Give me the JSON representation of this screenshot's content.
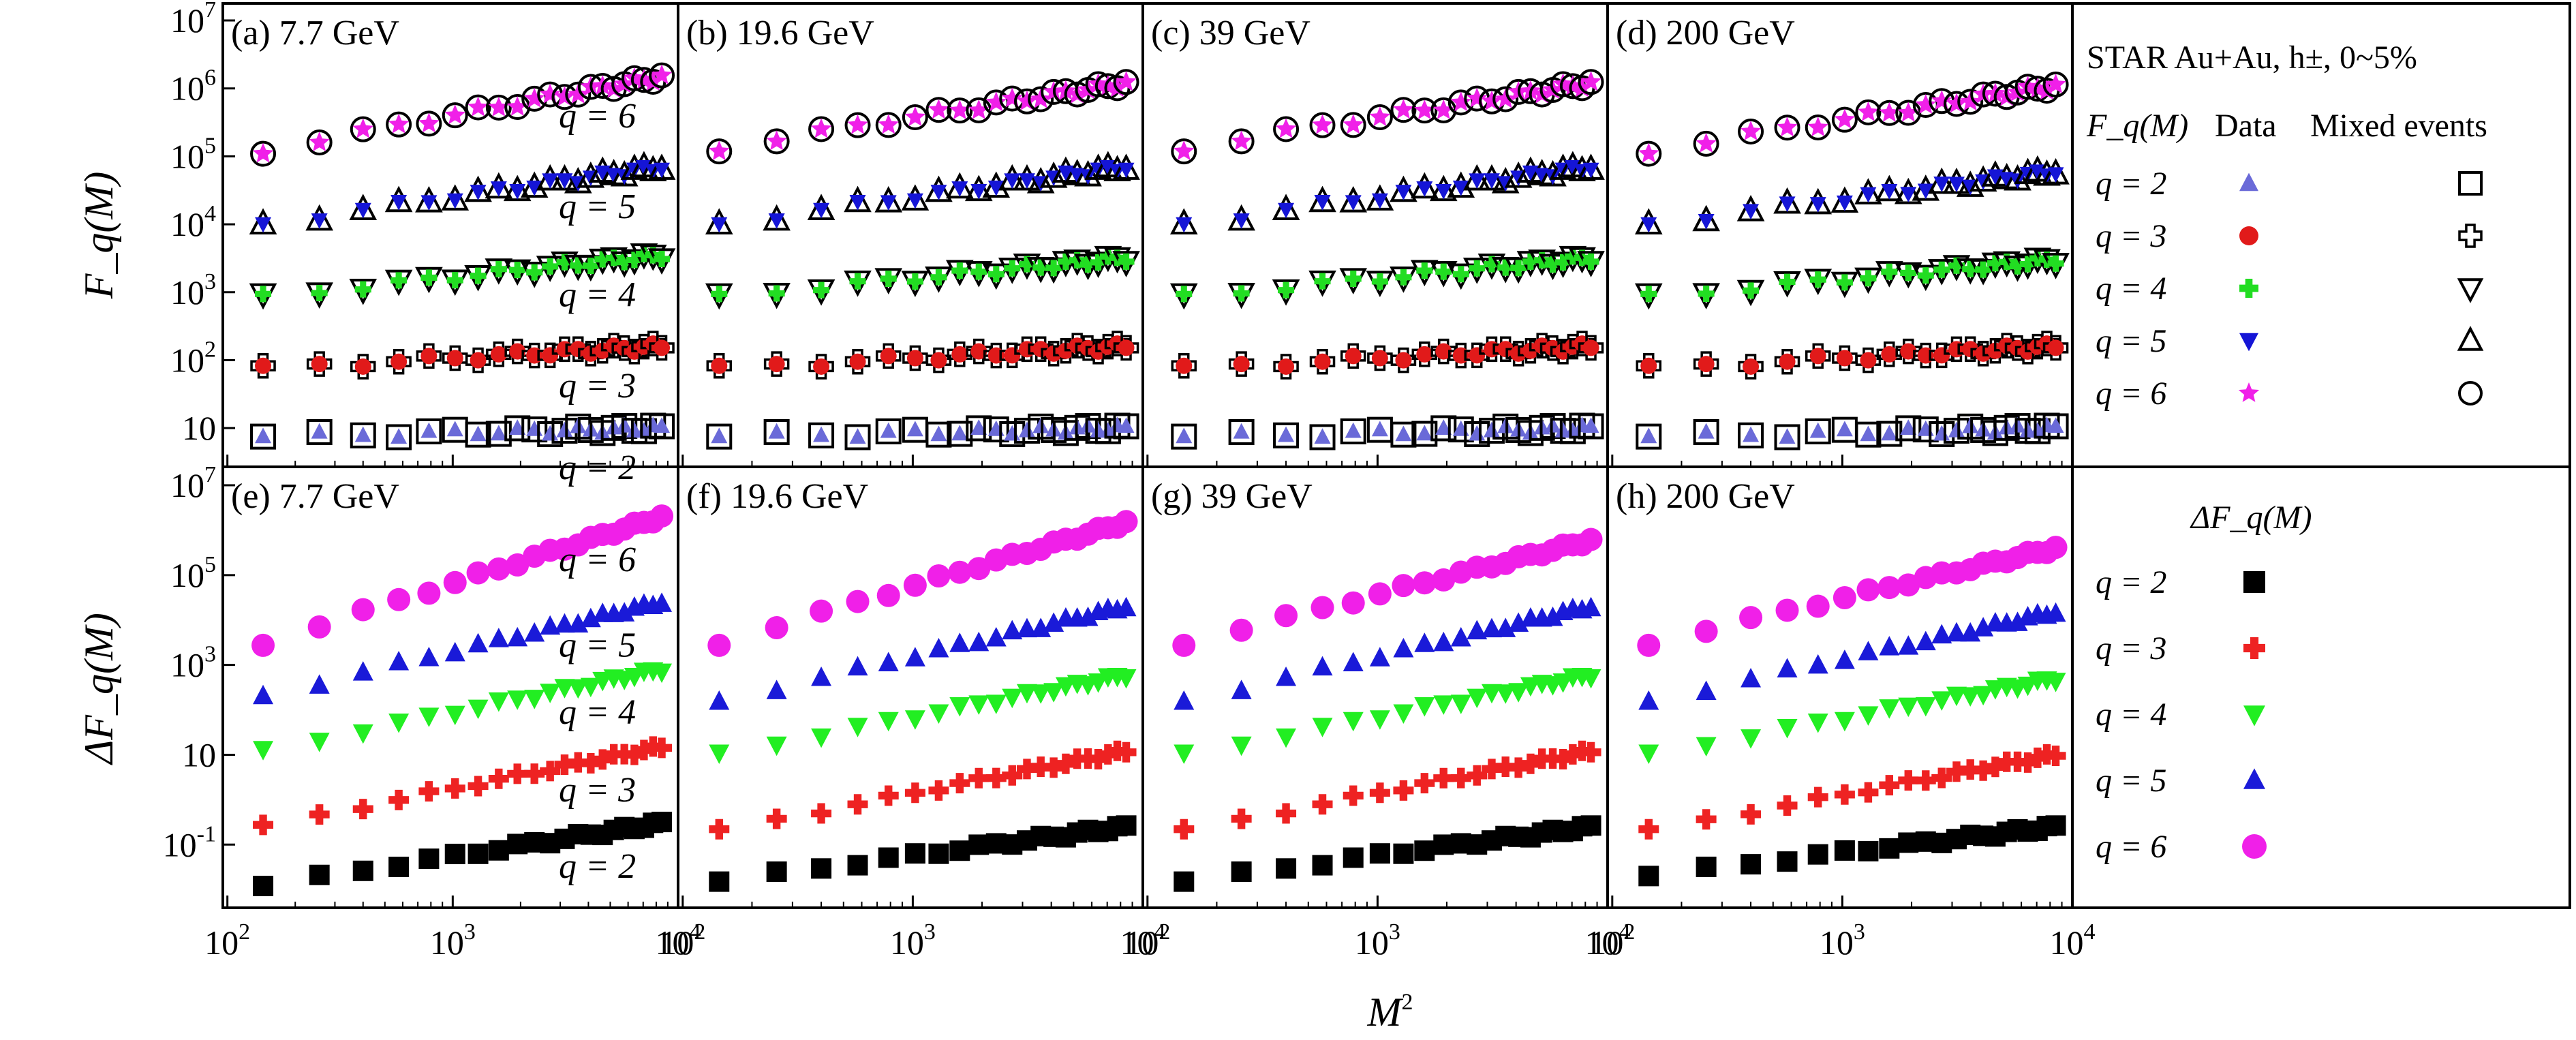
{
  "figure": {
    "x_axis_label": "M",
    "x_axis_label_sup": "2",
    "top_y_axis_label": "F_q(M)",
    "bottom_y_axis_label": "ΔF_q(M)"
  },
  "legend_top": {
    "header": "STAR Au+Au, h±, 0~5%",
    "col_fq": "F_q(M)",
    "col_data": "Data",
    "col_mixed": "Mixed events",
    "rows": [
      "q = 2",
      "q = 3",
      "q = 4",
      "q = 5",
      "q = 6"
    ]
  },
  "legend_bottom": {
    "header": "ΔF_q(M)",
    "rows": [
      "q = 2",
      "q = 3",
      "q = 4",
      "q = 5",
      "q = 6"
    ]
  },
  "colors": {
    "q2_data": "#6a6ad8",
    "q3_data": "#e11a1a",
    "q4_data": "#22dd22",
    "q5_data": "#1515d6",
    "q6_data": "#f020e8",
    "q2_delta": "#000000",
    "q3_delta": "#ee2222",
    "q4_delta": "#22ee22",
    "q5_delta": "#1a1ad8",
    "q6_delta": "#f020e8"
  },
  "chart_data": [
    {
      "panel": "(a) 7.7 GeV",
      "type": "scatter",
      "x_scale": "log",
      "y_scale": "log",
      "xlim": [
        100,
        10000
      ],
      "ylim": [
        3,
        10000000
      ],
      "xticks": [
        "10^2",
        "10^3",
        "10^4"
      ],
      "yticks": [
        "10",
        "10^2",
        "10^3",
        "10^4",
        "10^5",
        "10^6",
        "10^7"
      ],
      "series": [
        {
          "name": "q = 2",
          "label": "q = 2",
          "from": 7.5,
          "to": 10
        },
        {
          "name": "q = 3",
          "label": "q = 3",
          "from": 75,
          "to": 160
        },
        {
          "name": "q = 4",
          "label": "q = 4",
          "from": 850,
          "to": 3500
        },
        {
          "name": "q = 5",
          "label": "q = 5",
          "from": 10000,
          "to": 70000
        },
        {
          "name": "q = 6",
          "label": "q = 6",
          "from": 120000,
          "to": 1500000
        }
      ]
    },
    {
      "panel": "(b) 19.6 GeV",
      "type": "scatter",
      "x_scale": "log",
      "y_scale": "log",
      "xlim": [
        100,
        10000
      ],
      "ylim": [
        3,
        10000000
      ],
      "series": [
        {
          "name": "q = 2",
          "from": 7.5,
          "to": 10
        },
        {
          "name": "q = 3",
          "from": 75,
          "to": 160
        },
        {
          "name": "q = 4",
          "from": 850,
          "to": 3200
        },
        {
          "name": "q = 5",
          "from": 10000,
          "to": 70000
        },
        {
          "name": "q = 6",
          "from": 130000,
          "to": 1200000
        }
      ]
    },
    {
      "panel": "(c) 39 GeV",
      "type": "scatter",
      "x_scale": "log",
      "y_scale": "log",
      "xlim": [
        100,
        10000
      ],
      "ylim": [
        3,
        10000000
      ],
      "series": [
        {
          "name": "q = 2",
          "from": 7.5,
          "to": 10
        },
        {
          "name": "q = 3",
          "from": 75,
          "to": 160
        },
        {
          "name": "q = 4",
          "from": 850,
          "to": 3200
        },
        {
          "name": "q = 5",
          "from": 10000,
          "to": 70000
        },
        {
          "name": "q = 6",
          "from": 130000,
          "to": 1200000
        }
      ]
    },
    {
      "panel": "(d) 200 GeV",
      "type": "scatter",
      "x_scale": "log",
      "y_scale": "log",
      "xlim": [
        100,
        10000
      ],
      "ylim": [
        3,
        10000000
      ],
      "series": [
        {
          "name": "q = 2",
          "from": 7.5,
          "to": 10
        },
        {
          "name": "q = 3",
          "from": 75,
          "to": 160
        },
        {
          "name": "q = 4",
          "from": 850,
          "to": 3000
        },
        {
          "name": "q = 5",
          "from": 10000,
          "to": 60000
        },
        {
          "name": "q = 6",
          "from": 120000,
          "to": 1100000
        }
      ]
    },
    {
      "panel": "(e) 7.7 GeV",
      "type": "scatter",
      "x_scale": "log",
      "y_scale": "log",
      "xlim": [
        100,
        10000
      ],
      "ylim": [
        0.005,
        10000000
      ],
      "yticks": [
        "10^-1",
        "10",
        "10^3",
        "10^5",
        "10^7"
      ],
      "series": [
        {
          "name": "q = 2",
          "label": "q = 2",
          "from": 0.012,
          "to": 0.3
        },
        {
          "name": "q = 3",
          "label": "q = 3",
          "from": 0.25,
          "to": 15
        },
        {
          "name": "q = 4",
          "label": "q = 4",
          "from": 12,
          "to": 800
        },
        {
          "name": "q = 5",
          "label": "q = 5",
          "from": 200,
          "to": 25000
        },
        {
          "name": "q = 6",
          "label": "q = 6",
          "from": 3000,
          "to": 2000000
        }
      ]
    },
    {
      "panel": "(f) 19.6 GeV",
      "type": "scatter",
      "x_scale": "log",
      "y_scale": "log",
      "xlim": [
        100,
        10000
      ],
      "ylim": [
        0.005,
        10000000
      ],
      "series": [
        {
          "name": "q = 2",
          "from": 0.015,
          "to": 0.25
        },
        {
          "name": "q = 3",
          "from": 0.2,
          "to": 12
        },
        {
          "name": "q = 4",
          "from": 10,
          "to": 600
        },
        {
          "name": "q = 5",
          "from": 150,
          "to": 20000
        },
        {
          "name": "q = 6",
          "from": 3000,
          "to": 1500000
        }
      ]
    },
    {
      "panel": "(g) 39 GeV",
      "type": "scatter",
      "x_scale": "log",
      "y_scale": "log",
      "xlim": [
        100,
        10000
      ],
      "ylim": [
        0.005,
        10000000
      ],
      "series": [
        {
          "name": "q = 2",
          "from": 0.015,
          "to": 0.25
        },
        {
          "name": "q = 3",
          "from": 0.2,
          "to": 12
        },
        {
          "name": "q = 4",
          "from": 10,
          "to": 600
        },
        {
          "name": "q = 5",
          "from": 150,
          "to": 20000
        },
        {
          "name": "q = 6",
          "from": 3000,
          "to": 600000
        }
      ]
    },
    {
      "panel": "(h) 200 GeV",
      "type": "scatter",
      "x_scale": "log",
      "y_scale": "log",
      "xlim": [
        100,
        10000
      ],
      "ylim": [
        0.005,
        10000000
      ],
      "series": [
        {
          "name": "q = 2",
          "from": 0.02,
          "to": 0.25
        },
        {
          "name": "q = 3",
          "from": 0.2,
          "to": 10
        },
        {
          "name": "q = 4",
          "from": 10,
          "to": 500
        },
        {
          "name": "q = 5",
          "from": 150,
          "to": 15000
        },
        {
          "name": "q = 6",
          "from": 3000,
          "to": 400000
        }
      ]
    }
  ]
}
